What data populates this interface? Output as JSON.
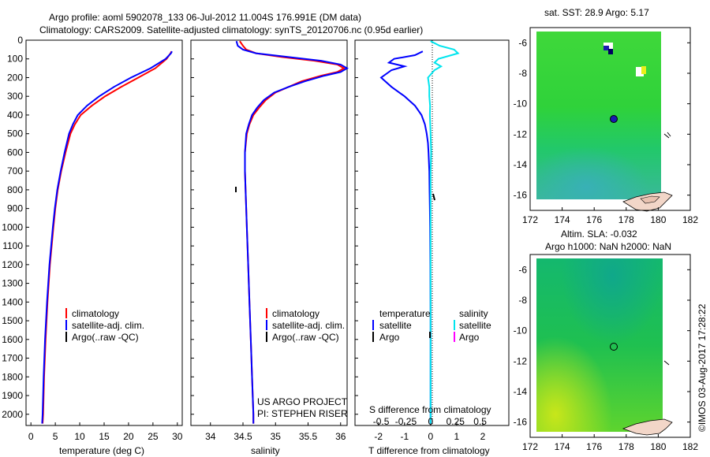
{
  "header": {
    "line1": "Argo profile: aoml 5902078_133 06-Jul-2012 11.004S 176.991E (DM data)",
    "line2": "Climatology: CARS2009. Satellite-adjusted climatology: synTS_20120706.nc (0.95d earlier)"
  },
  "credit": {
    "project": "US ARGO PROJECT",
    "pi": "PI: STEPHEN RISER",
    "imos": "©IMOS 03-Aug-2017 17:28:22"
  },
  "colors": {
    "climatology": "#ff0000",
    "satellite": "#0000ff",
    "argo": "#000000",
    "sal_satellite": "#00e5ee",
    "sal_argo": "#ff00ff"
  },
  "chart_data": [
    {
      "type": "line",
      "id": "temperature",
      "xlabel": "temperature (deg C)",
      "xlim": [
        -1,
        31
      ],
      "xticks": [
        0,
        5,
        10,
        15,
        20,
        25,
        30
      ],
      "ylim": [
        2060,
        0
      ],
      "yticks": [
        0,
        100,
        200,
        300,
        400,
        500,
        600,
        700,
        800,
        900,
        1000,
        1100,
        1200,
        1300,
        1400,
        1500,
        1600,
        1700,
        1800,
        1900,
        2000
      ],
      "legend": [
        "climatology",
        "satellite-adj. clim.",
        "Argo(..raw -QC)"
      ],
      "series": [
        {
          "name": "climatology",
          "color": "#ff0000",
          "depth": [
            60,
            70,
            100,
            150,
            200,
            250,
            300,
            350,
            400,
            450,
            500,
            600,
            700,
            800,
            900,
            1000,
            1200,
            1400,
            1600,
            1800,
            2000,
            2050
          ],
          "values": [
            28.8,
            28.6,
            27.8,
            25.5,
            22.0,
            18.5,
            15.2,
            12.5,
            10.2,
            9.0,
            8.1,
            7.1,
            6.2,
            5.5,
            5.0,
            4.6,
            3.9,
            3.4,
            3.0,
            2.7,
            2.5,
            2.4
          ]
        },
        {
          "name": "satellite",
          "color": "#0000ff",
          "depth": [
            60,
            70,
            100,
            150,
            200,
            250,
            300,
            350,
            400,
            450,
            500,
            600,
            700,
            800,
            900,
            1000,
            1200,
            1400,
            1600,
            1800,
            2000,
            2050
          ],
          "values": [
            28.9,
            28.7,
            27.6,
            24.5,
            20.5,
            17.0,
            14.0,
            11.5,
            9.6,
            8.6,
            7.8,
            6.9,
            6.1,
            5.4,
            4.9,
            4.5,
            3.8,
            3.3,
            2.9,
            2.6,
            2.4,
            2.3
          ]
        }
      ]
    },
    {
      "type": "line",
      "id": "salinity",
      "xlabel": "salinity",
      "xlim": [
        33.7,
        36.1
      ],
      "xticks": [
        34,
        34.5,
        35,
        35.5,
        36
      ],
      "xtick_labels": [
        "34",
        "34.5",
        "35",
        "35.5",
        "36"
      ],
      "ylim": [
        2060,
        0
      ],
      "legend": [
        "climatology",
        "satellite-adj. clim.",
        "Argo(..raw -QC)"
      ],
      "series": [
        {
          "name": "climatology",
          "color": "#ff0000",
          "depth": [
            5,
            30,
            50,
            70,
            90,
            110,
            130,
            150,
            170,
            190,
            220,
            250,
            280,
            320,
            360,
            400,
            450,
            500,
            600,
            700,
            800,
            1000,
            1200,
            1400,
            1600,
            1800,
            2000,
            2050
          ],
          "values": [
            34.45,
            34.5,
            34.55,
            34.7,
            35.1,
            35.6,
            35.95,
            36.05,
            35.95,
            35.7,
            35.4,
            35.2,
            35.0,
            34.85,
            34.75,
            34.66,
            34.6,
            34.56,
            34.53,
            34.53,
            34.54,
            34.56,
            34.58,
            34.6,
            34.62,
            34.64,
            34.66,
            34.66
          ]
        },
        {
          "name": "satellite",
          "color": "#0000ff",
          "depth": [
            5,
            30,
            50,
            70,
            90,
            110,
            130,
            150,
            170,
            190,
            220,
            250,
            280,
            320,
            360,
            400,
            450,
            500,
            600,
            700,
            800,
            1000,
            1200,
            1400,
            1600,
            1800,
            2000,
            2050
          ],
          "values": [
            34.4,
            34.42,
            34.5,
            34.7,
            35.2,
            35.7,
            36.0,
            36.1,
            36.0,
            35.75,
            35.45,
            35.2,
            34.98,
            34.82,
            34.72,
            34.64,
            34.59,
            34.55,
            34.53,
            34.53,
            34.54,
            34.56,
            34.58,
            34.6,
            34.62,
            34.64,
            34.66,
            34.66
          ]
        }
      ]
    },
    {
      "type": "line",
      "id": "difference",
      "xlabel_top": "S difference from climatology",
      "xlabel": "T difference from climatology",
      "xlim_T": [
        -2.9,
        3.0
      ],
      "xticks_T": [
        -2,
        -1,
        0,
        1,
        2
      ],
      "xticks_S_labels": [
        "-0.5",
        "-0.25",
        "0",
        "0.25",
        "0.5"
      ],
      "xticks_S_values": [
        -1.9,
        -0.95,
        0,
        0.95,
        1.9
      ],
      "ylim": [
        2060,
        0
      ],
      "legend_t_title": "temperature",
      "legend_s_title": "salinity",
      "legend_satellite": "satellite",
      "legend_argo": "Argo",
      "series": [
        {
          "name": "temperature satellite",
          "color": "#0000ff",
          "depth": [
            60,
            80,
            100,
            120,
            140,
            160,
            200,
            250,
            300,
            350,
            400,
            450,
            500,
            550,
            600,
            700,
            800,
            900,
            1000,
            1200,
            1500,
            2000,
            2050
          ],
          "values": [
            -0.3,
            -0.6,
            -1.4,
            -1.6,
            -1.0,
            -1.5,
            -1.9,
            -1.5,
            -1.0,
            -0.6,
            -0.35,
            -0.22,
            -0.15,
            -0.1,
            -0.08,
            -0.05,
            -0.04,
            -0.03,
            -0.02,
            -0.01,
            0,
            0,
            0
          ]
        },
        {
          "name": "salinity satellite",
          "color": "#00e5ee",
          "depth": [
            5,
            30,
            50,
            70,
            80,
            100,
            120,
            140,
            160,
            200,
            250,
            300,
            350,
            400,
            500,
            600,
            700,
            800,
            1000,
            1500,
            2000,
            2050
          ],
          "values": [
            0,
            0.35,
            0.9,
            1.05,
            0.8,
            0.3,
            0.15,
            0.4,
            0.15,
            -0.1,
            -0.05,
            -0.05,
            -0.02,
            -0.03,
            0,
            0.02,
            0,
            0,
            0,
            0,
            0,
            0
          ]
        }
      ]
    }
  ],
  "maps": [
    {
      "id": "sst",
      "title": "sat. SST: 28.9 Argo: 5.17",
      "xticks": [
        "172",
        "174",
        "176",
        "178",
        "180",
        "182"
      ],
      "yticks": [
        "-6",
        "-8",
        "-10",
        "-12",
        "-14",
        "-16"
      ],
      "xlim": [
        172,
        182
      ],
      "ylim": [
        -17,
        -5
      ],
      "float_lon": 176.991,
      "float_lat": -11.004
    },
    {
      "id": "sla",
      "title1": "Altim. SLA: -0.032",
      "title2": "Argo h1000: NaN h2000: NaN",
      "xticks": [
        "172",
        "174",
        "176",
        "178",
        "180",
        "182"
      ],
      "yticks": [
        "-6",
        "-8",
        "-10",
        "-12",
        "-14",
        "-16"
      ],
      "xlim": [
        172,
        182
      ],
      "ylim": [
        -17,
        -5
      ],
      "float_lon": 176.991,
      "float_lat": -11.004
    }
  ]
}
